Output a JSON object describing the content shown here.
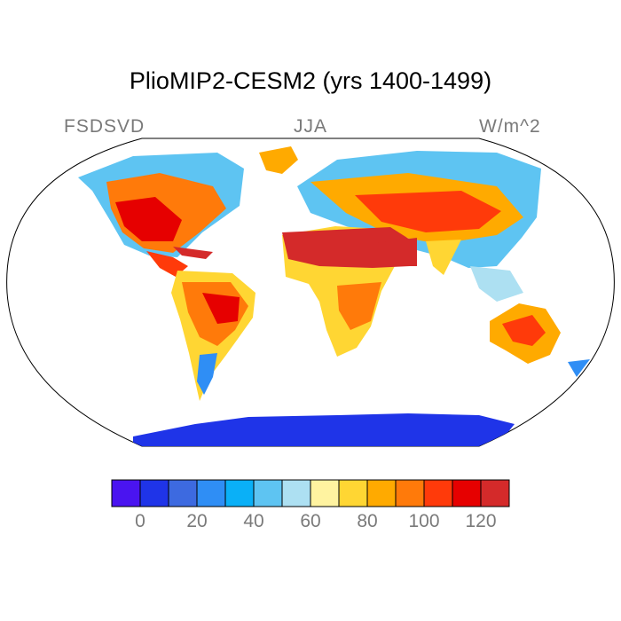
{
  "title": "PlioMIP2-CESM2 (yrs 1400-1499)",
  "variable": "FSDSVD",
  "season": "JJA",
  "units": "W/m^2",
  "colorbar": {
    "colors": [
      "#4a14f0",
      "#1f34e8",
      "#3d6ae0",
      "#2f8ef5",
      "#0ab0f7",
      "#5ec4f2",
      "#ade0f2",
      "#fff3a0",
      "#ffd633",
      "#ffaa00",
      "#ff7a0a",
      "#ff3a0a",
      "#e60000",
      "#d42a2a"
    ],
    "tick_labels": [
      "0",
      "20",
      "40",
      "60",
      "80",
      "100",
      "120"
    ]
  },
  "colors": {
    "ocean": "#ffffff",
    "outline": "#000000",
    "antarctica": "#1f34e8"
  }
}
